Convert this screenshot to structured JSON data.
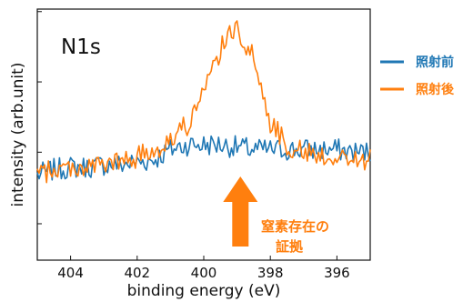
{
  "chart_data": {
    "type": "line",
    "panel_label": "N1s",
    "xlabel": "binding energy (eV)",
    "ylabel": "intensity (arb.unit)",
    "xlim": [
      405.0,
      395.0
    ],
    "x_reversed": true,
    "ylim": [
      0.0,
      1.0
    ],
    "x_ticks": [
      404,
      402,
      400,
      398,
      396
    ],
    "x_tick_labels": [
      "404",
      "402",
      "400",
      "398",
      "396"
    ],
    "y_ticks": [
      0.145,
      0.43,
      0.71,
      0.99
    ],
    "y_tick_labels": [],
    "grid": false,
    "legend_position": "right",
    "series": [
      {
        "name": "照射前",
        "color": "#1f77b4",
        "x": [
          405.0,
          404.5,
          404.0,
          403.5,
          403.0,
          402.5,
          402.0,
          401.5,
          401.0,
          400.5,
          400.0,
          399.5,
          399.0,
          398.5,
          398.0,
          397.5,
          397.0,
          396.5,
          396.0,
          395.5,
          395.0
        ],
        "y": [
          0.34,
          0.36,
          0.37,
          0.37,
          0.38,
          0.38,
          0.39,
          0.4,
          0.44,
          0.46,
          0.46,
          0.46,
          0.45,
          0.44,
          0.44,
          0.44,
          0.44,
          0.44,
          0.44,
          0.43,
          0.43
        ]
      },
      {
        "name": "照射後",
        "color": "#ff7f0e",
        "x": [
          405.0,
          404.5,
          404.0,
          403.5,
          403.0,
          402.5,
          402.0,
          401.5,
          401.0,
          400.5,
          400.0,
          399.5,
          399.0,
          398.5,
          398.0,
          397.5,
          397.0,
          396.5,
          396.0,
          395.5,
          395.0
        ],
        "y": [
          0.34,
          0.36,
          0.37,
          0.37,
          0.38,
          0.39,
          0.41,
          0.44,
          0.48,
          0.54,
          0.66,
          0.84,
          0.93,
          0.8,
          0.55,
          0.46,
          0.43,
          0.42,
          0.41,
          0.4,
          0.4
        ]
      }
    ],
    "annotation": {
      "text_line1": "窒素存在の",
      "text_line2": "証拠",
      "color": "#ff7f0e",
      "arrow_x": 398.9
    }
  }
}
